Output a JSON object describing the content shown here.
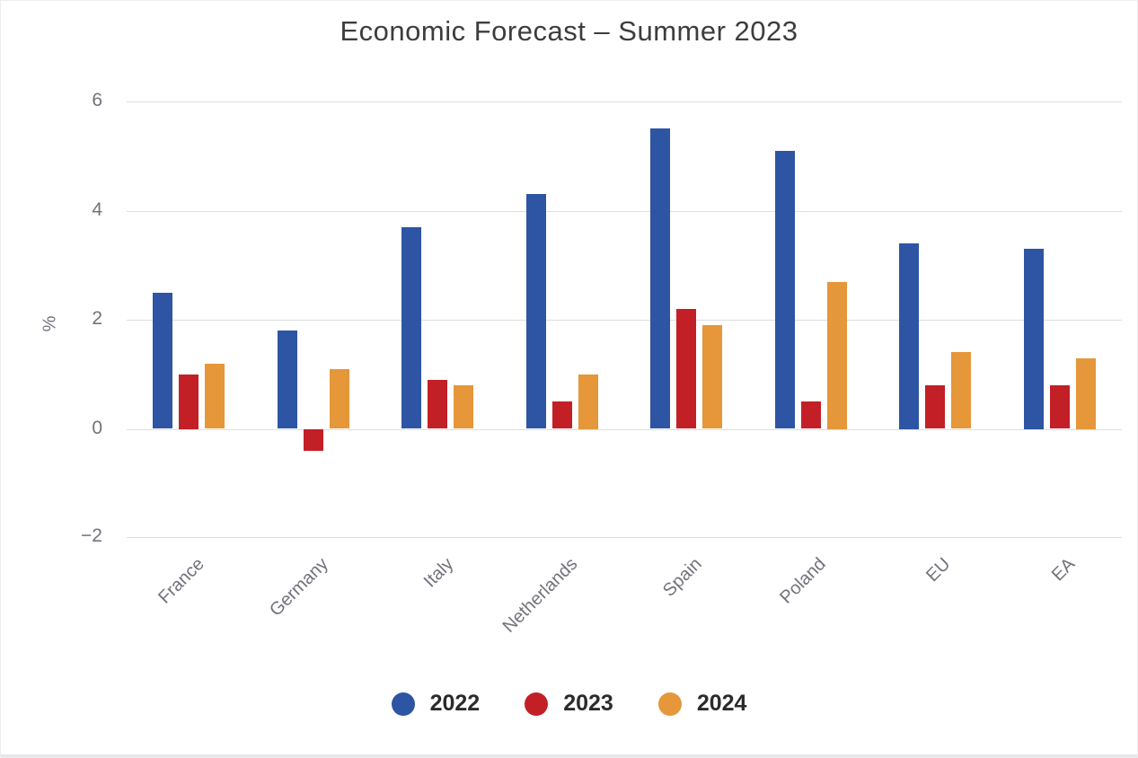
{
  "chart_data": {
    "type": "bar",
    "title": "Economic Forecast – Summer 2023",
    "ylabel": "%",
    "categories": [
      "France",
      "Germany",
      "Italy",
      "Netherlands",
      "Spain",
      "Poland",
      "EU",
      "EA"
    ],
    "series": [
      {
        "name": "2022",
        "color": "#2e55a4",
        "values": [
          2.5,
          1.8,
          3.7,
          4.3,
          5.5,
          5.1,
          3.4,
          3.3
        ]
      },
      {
        "name": "2023",
        "color": "#c22026",
        "values": [
          1.0,
          -0.4,
          0.9,
          0.5,
          2.2,
          0.5,
          0.8,
          0.8
        ]
      },
      {
        "name": "2024",
        "color": "#e59739",
        "values": [
          1.2,
          1.1,
          0.8,
          1.0,
          1.9,
          2.7,
          1.4,
          1.3
        ]
      }
    ],
    "ylim": [
      -2,
      6
    ],
    "yticks": [
      {
        "value": 6,
        "label": "6"
      },
      {
        "value": 4,
        "label": "4"
      },
      {
        "value": 2,
        "label": "2"
      },
      {
        "value": 0,
        "label": "0"
      },
      {
        "value": -2,
        "label": "−2"
      }
    ],
    "grid": true,
    "legend_position": "bottom",
    "legend": [
      "2022",
      "2023",
      "2024"
    ]
  },
  "colors": {
    "grid": "#dedee3",
    "axis_text": "#72727c",
    "title_text": "#3d3d3d",
    "legend_text": "#2b2b2b",
    "background": "#ffffff",
    "bottom_border": "#e6e6e9"
  }
}
